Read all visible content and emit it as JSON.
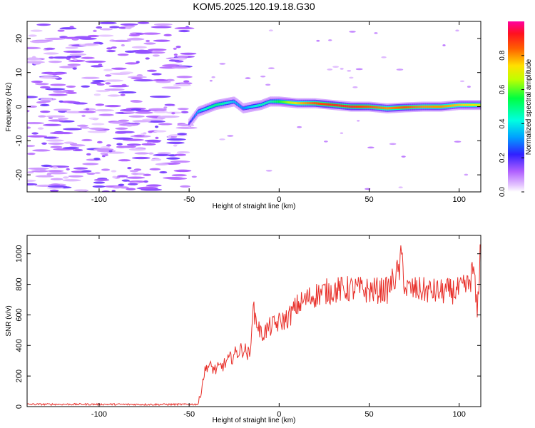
{
  "title": "KOM5.2025.120.19.18.G30",
  "chart_data": [
    {
      "type": "heatmap",
      "xlabel": "Height of straight line (km)",
      "ylabel": "Frequency (Hz)",
      "xlim": [
        -140,
        112
      ],
      "ylim": [
        -25,
        25
      ],
      "xticks": [
        -100,
        -50,
        0,
        50,
        100
      ],
      "yticks": [
        -20,
        -10,
        0,
        10,
        20
      ],
      "colorbar": {
        "label": "Normalized spectral amplitude",
        "range": [
          0,
          1
        ],
        "ticks": [
          0.0,
          0.2,
          0.4,
          0.6,
          0.8
        ],
        "tick_labels": [
          "0.0",
          "0.2",
          "0.4",
          "0.6",
          "0.8"
        ],
        "colormap": "rainbow"
      },
      "noise_region": {
        "x_range": [
          -140,
          -50
        ],
        "level": "0.05-0.2"
      },
      "ridge": {
        "description_points_x": [
          -50,
          -45,
          -40,
          -35,
          -30,
          -25,
          -20,
          -15,
          -10,
          -5,
          0,
          10,
          20,
          30,
          40,
          50,
          60,
          70,
          80,
          90,
          100,
          110
        ],
        "frequency": [
          -5,
          -1.5,
          -0.5,
          0.5,
          1,
          1.5,
          -0.5,
          0,
          0.5,
          1.5,
          1.5,
          1,
          1,
          0.5,
          0,
          0,
          -0.5,
          -0.2,
          0,
          0,
          0.5,
          0.5
        ],
        "amplitude": [
          0.2,
          0.35,
          0.45,
          0.5,
          0.45,
          0.35,
          0.3,
          0.4,
          0.45,
          0.45,
          0.55,
          0.75,
          0.85,
          0.9,
          0.9,
          0.85,
          0.8,
          0.85,
          0.8,
          0.8,
          0.75,
          0.7
        ]
      }
    },
    {
      "type": "line",
      "xlabel": "Height of straight line (km)",
      "ylabel": "SNR (v/v)",
      "xlim": [
        -140,
        112
      ],
      "ylim": [
        0,
        1120
      ],
      "xticks": [
        -100,
        -50,
        0,
        50,
        100
      ],
      "yticks": [
        0,
        200,
        400,
        600,
        800,
        1000
      ],
      "color": "#e8302a",
      "series": [
        {
          "x": [
            -140,
            -120,
            -100,
            -80,
            -60,
            -45,
            -44,
            -42,
            -40,
            -35,
            -30,
            -25,
            -20,
            -16,
            -15,
            -10,
            -5,
            0,
            5,
            10,
            15,
            20,
            25,
            30,
            40,
            50,
            60,
            67,
            68,
            70,
            80,
            90,
            100,
            105,
            108,
            110,
            112
          ],
          "y": [
            15,
            15,
            15,
            14,
            14,
            15,
            60,
            200,
            270,
            240,
            280,
            340,
            380,
            330,
            650,
            470,
            520,
            550,
            580,
            660,
            700,
            730,
            750,
            760,
            770,
            760,
            760,
            900,
            990,
            770,
            760,
            750,
            760,
            790,
            900,
            600,
            1110
          ]
        }
      ]
    }
  ]
}
